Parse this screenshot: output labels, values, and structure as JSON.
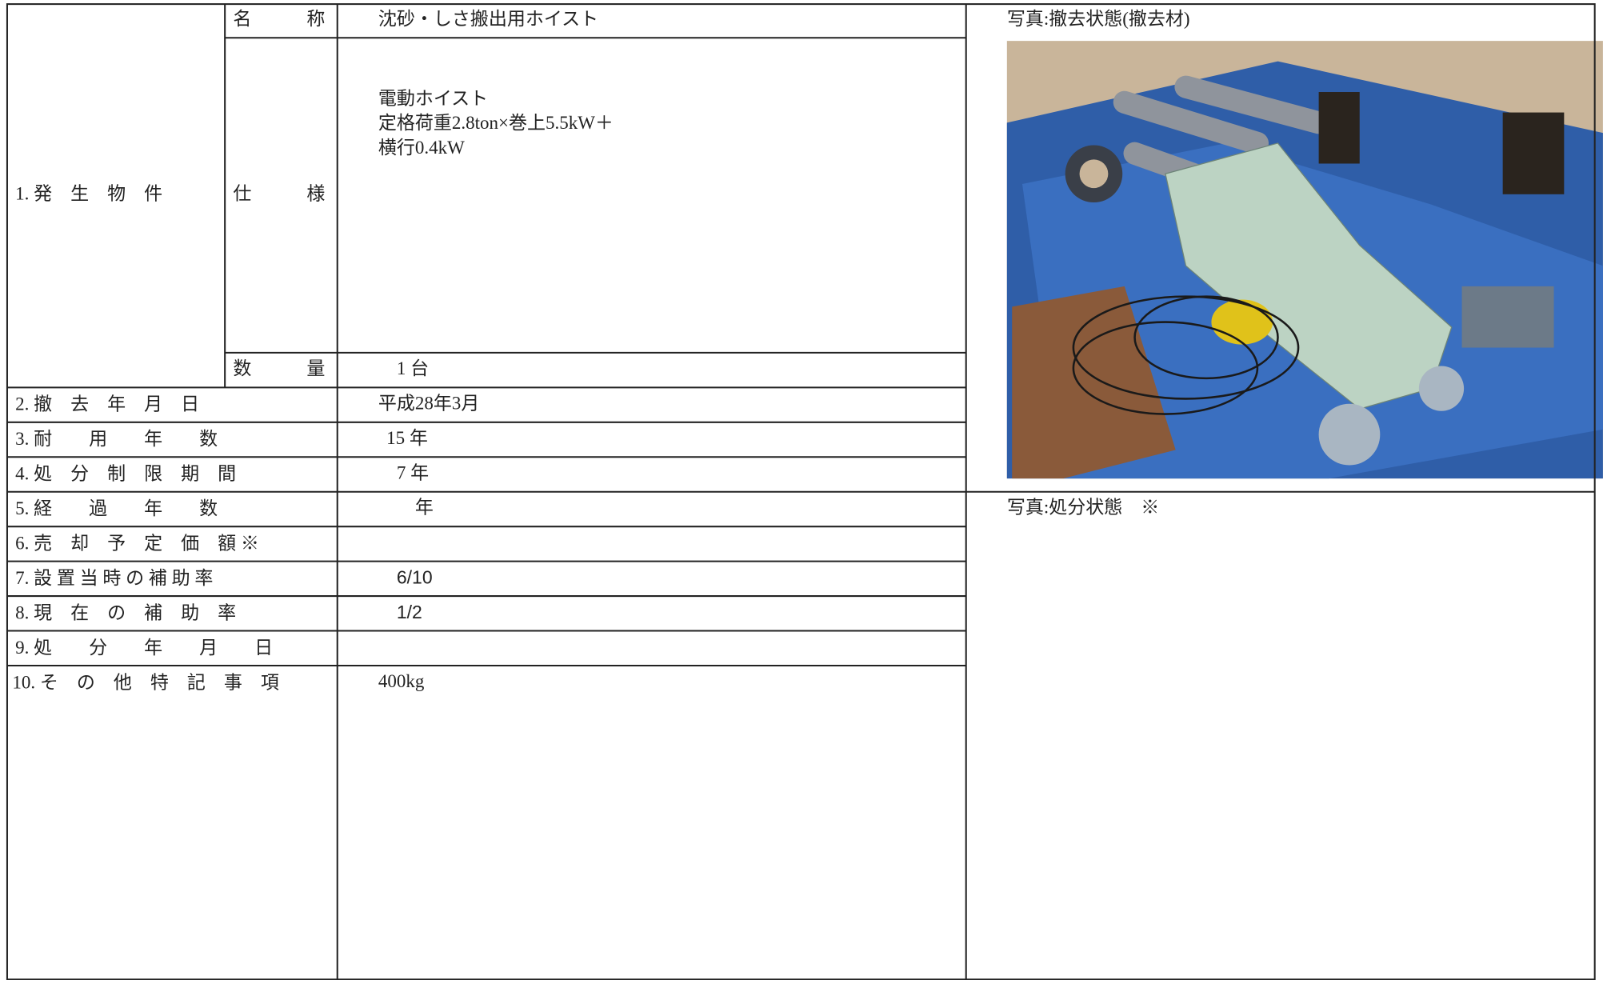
{
  "item1": {
    "label": "1. 発　生　物　件",
    "fields": [
      {
        "label": "名　　　称",
        "value": "沈砂・しさ搬出用ホイスト"
      },
      {
        "label": "仕　　　様",
        "value": [
          "電動ホイスト",
          "定格荷重2.8ton×巻上5.5kW＋",
          "横行0.4kW"
        ]
      },
      {
        "label": "数　　　量",
        "value": "1 台"
      }
    ]
  },
  "rows": [
    {
      "label": "2. 撤　去　年　月　日",
      "value": "平成28年3月"
    },
    {
      "label": "3. 耐　　用　　年　　数",
      "value": "15 年"
    },
    {
      "label": "4. 処　分　制　限　期　間",
      "value": "7 年"
    },
    {
      "label": "5. 経　　過　　年　　数",
      "value": "年"
    },
    {
      "label": "6. 売　却　予　定　価　額 ※"
    },
    {
      "label": "7. 設 置 当 時 の 補 助 率",
      "value": "6/10"
    },
    {
      "label": "8. 現　在　の　補　助　率",
      "value": "1/2"
    },
    {
      "label": "9. 処　　分　　年　　月　　日"
    },
    {
      "label": "10. そ　の　他　特　記　事　項",
      "value": "400kg"
    }
  ],
  "photos": [
    {
      "caption": "写真:撤去状態(撤去材)"
    },
    {
      "caption": "写真:処分状態　※"
    }
  ]
}
